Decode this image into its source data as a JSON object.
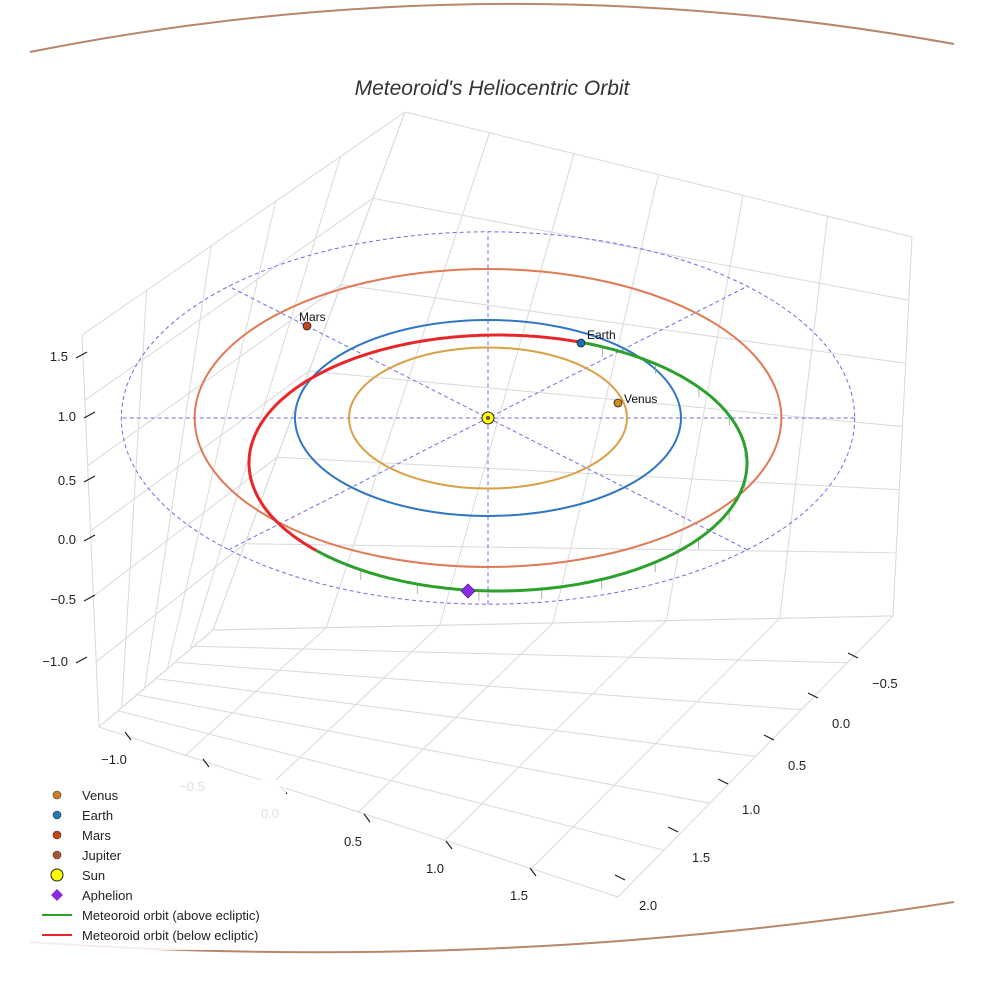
{
  "chart_data": {
    "type": "3d-orbit",
    "title": "Meteoroid's Heliocentric Orbit",
    "axes": {
      "x": {
        "ticks": [
          -1.0,
          -0.5,
          0.0,
          0.5,
          1.0,
          1.5
        ],
        "tick_labels": [
          "−1.0",
          "−0.5",
          "0.0",
          "0.5",
          "1.0",
          "1.5"
        ],
        "range": [
          -1.2,
          1.8
        ]
      },
      "y": {
        "ticks": [
          2.0,
          1.5,
          1.0,
          0.5,
          0.0,
          -0.5
        ],
        "tick_labels": [
          "2.0",
          "1.5",
          "1.0",
          "0.5",
          "0.0",
          "−0.5"
        ],
        "range": [
          -0.7,
          2.1
        ]
      },
      "z": {
        "ticks": [
          -1.0,
          -0.5,
          0.0,
          0.5,
          1.0,
          1.5
        ],
        "tick_labels": [
          "−1.0",
          "−0.5",
          "0.0",
          "0.5",
          "1.0",
          "1.5"
        ],
        "range": [
          -1.3,
          1.7
        ]
      }
    },
    "orbits": [
      {
        "name": "Venus",
        "a": 0.72,
        "color": "#d9a045"
      },
      {
        "name": "Earth",
        "a": 1.0,
        "color": "#2f77c4"
      },
      {
        "name": "Mars",
        "a": 1.52,
        "color": "#e07a55"
      }
    ],
    "reference_circle": {
      "radius": 1.9,
      "color": "#6b6bef"
    },
    "planets": [
      {
        "name": "Venus",
        "label": "Venus",
        "color": "#d08a1e"
      },
      {
        "name": "Earth",
        "label": "Earth",
        "color": "#1f6fb2"
      },
      {
        "name": "Mars",
        "label": "Mars",
        "color": "#c8441c"
      }
    ],
    "meteoroid": {
      "above_color": "#2ca02c",
      "below_color": "#e8262a",
      "aphelion_label": "Aphelion",
      "aphelion_color": "#8a2be2"
    },
    "sun": {
      "label": "Sun",
      "color": "#ffff00"
    },
    "legend": {
      "position": "bottom-left",
      "entries": [
        {
          "label": "Venus",
          "kind": "dot",
          "color": "#cd7f1f"
        },
        {
          "label": "Earth",
          "kind": "dot",
          "color": "#1f77b4"
        },
        {
          "label": "Mars",
          "kind": "dot",
          "color": "#c84517"
        },
        {
          "label": "Jupiter",
          "kind": "dot",
          "color": "#a9582d"
        },
        {
          "label": "Sun",
          "kind": "sun",
          "color": "#ffff00"
        },
        {
          "label": "Aphelion",
          "kind": "diamond",
          "color": "#8a2be2"
        },
        {
          "label": "Meteoroid orbit (above ecliptic)",
          "kind": "line",
          "color": "#2ca02c"
        },
        {
          "label": "Meteoroid orbit (below ecliptic)",
          "kind": "line",
          "color": "#e8262a"
        }
      ]
    },
    "jupiter_orbit_color": "#b8866a"
  }
}
